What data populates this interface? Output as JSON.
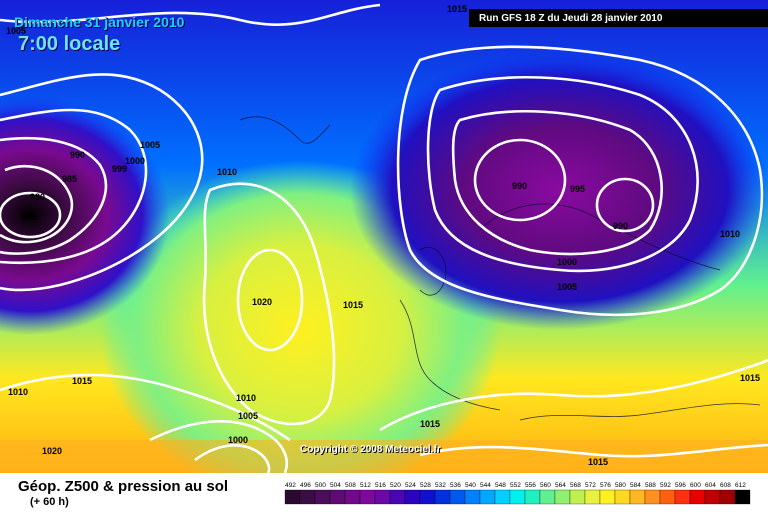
{
  "header": {
    "date": "Dimanche 31 janvier 2010",
    "time": "7:00 locale",
    "run": "Run GFS 18 Z du Jeudi 28 janvier 2010"
  },
  "copyright": "Copyright © 2008 Meteociel.fr",
  "legend": {
    "title": "Géop. Z500 & pression au sol",
    "subtitle": "(+ 60 h)",
    "ticks": [
      "492",
      "496",
      "500",
      "504",
      "508",
      "512",
      "516",
      "520",
      "524",
      "528",
      "532",
      "536",
      "540",
      "544",
      "548",
      "552",
      "556",
      "560",
      "564",
      "568",
      "572",
      "576",
      "580",
      "584",
      "588",
      "592",
      "596",
      "600",
      "604",
      "608",
      "612"
    ],
    "colors": [
      "#2a0a2e",
      "#3c0c45",
      "#4e0c5c",
      "#5f0b72",
      "#700a88",
      "#7e0a9b",
      "#6a08a8",
      "#4a06b4",
      "#2a04c0",
      "#1010d0",
      "#0030e0",
      "#0058f0",
      "#0080ff",
      "#00a8ff",
      "#00d0ff",
      "#00f0f0",
      "#20f0c0",
      "#60f090",
      "#90f070",
      "#c0f050",
      "#e8f040",
      "#fff020",
      "#ffd820",
      "#ffb820",
      "#ff9020",
      "#ff6010",
      "#ff3010",
      "#e80000",
      "#c00000",
      "#a00000",
      "#000000"
    ]
  },
  "isobars": [
    {
      "label": "1015"
    },
    {
      "label": "1000"
    },
    {
      "label": "1005"
    },
    {
      "label": "999"
    },
    {
      "label": "990"
    },
    {
      "label": "985"
    },
    {
      "label": "980"
    },
    {
      "label": "975"
    },
    {
      "label": "1010"
    },
    {
      "label": "1020"
    },
    {
      "label": "1015"
    },
    {
      "label": "990"
    },
    {
      "label": "995"
    },
    {
      "label": "990"
    },
    {
      "label": "1010"
    },
    {
      "label": "1000"
    },
    {
      "label": "1005"
    },
    {
      "label": "1010"
    },
    {
      "label": "1015"
    },
    {
      "label": "1010"
    },
    {
      "label": "1005"
    },
    {
      "label": "1000"
    },
    {
      "label": "1020"
    },
    {
      "label": "1015"
    },
    {
      "label": "1015"
    },
    {
      "label": "1015"
    },
    {
      "label": "1005"
    }
  ]
}
